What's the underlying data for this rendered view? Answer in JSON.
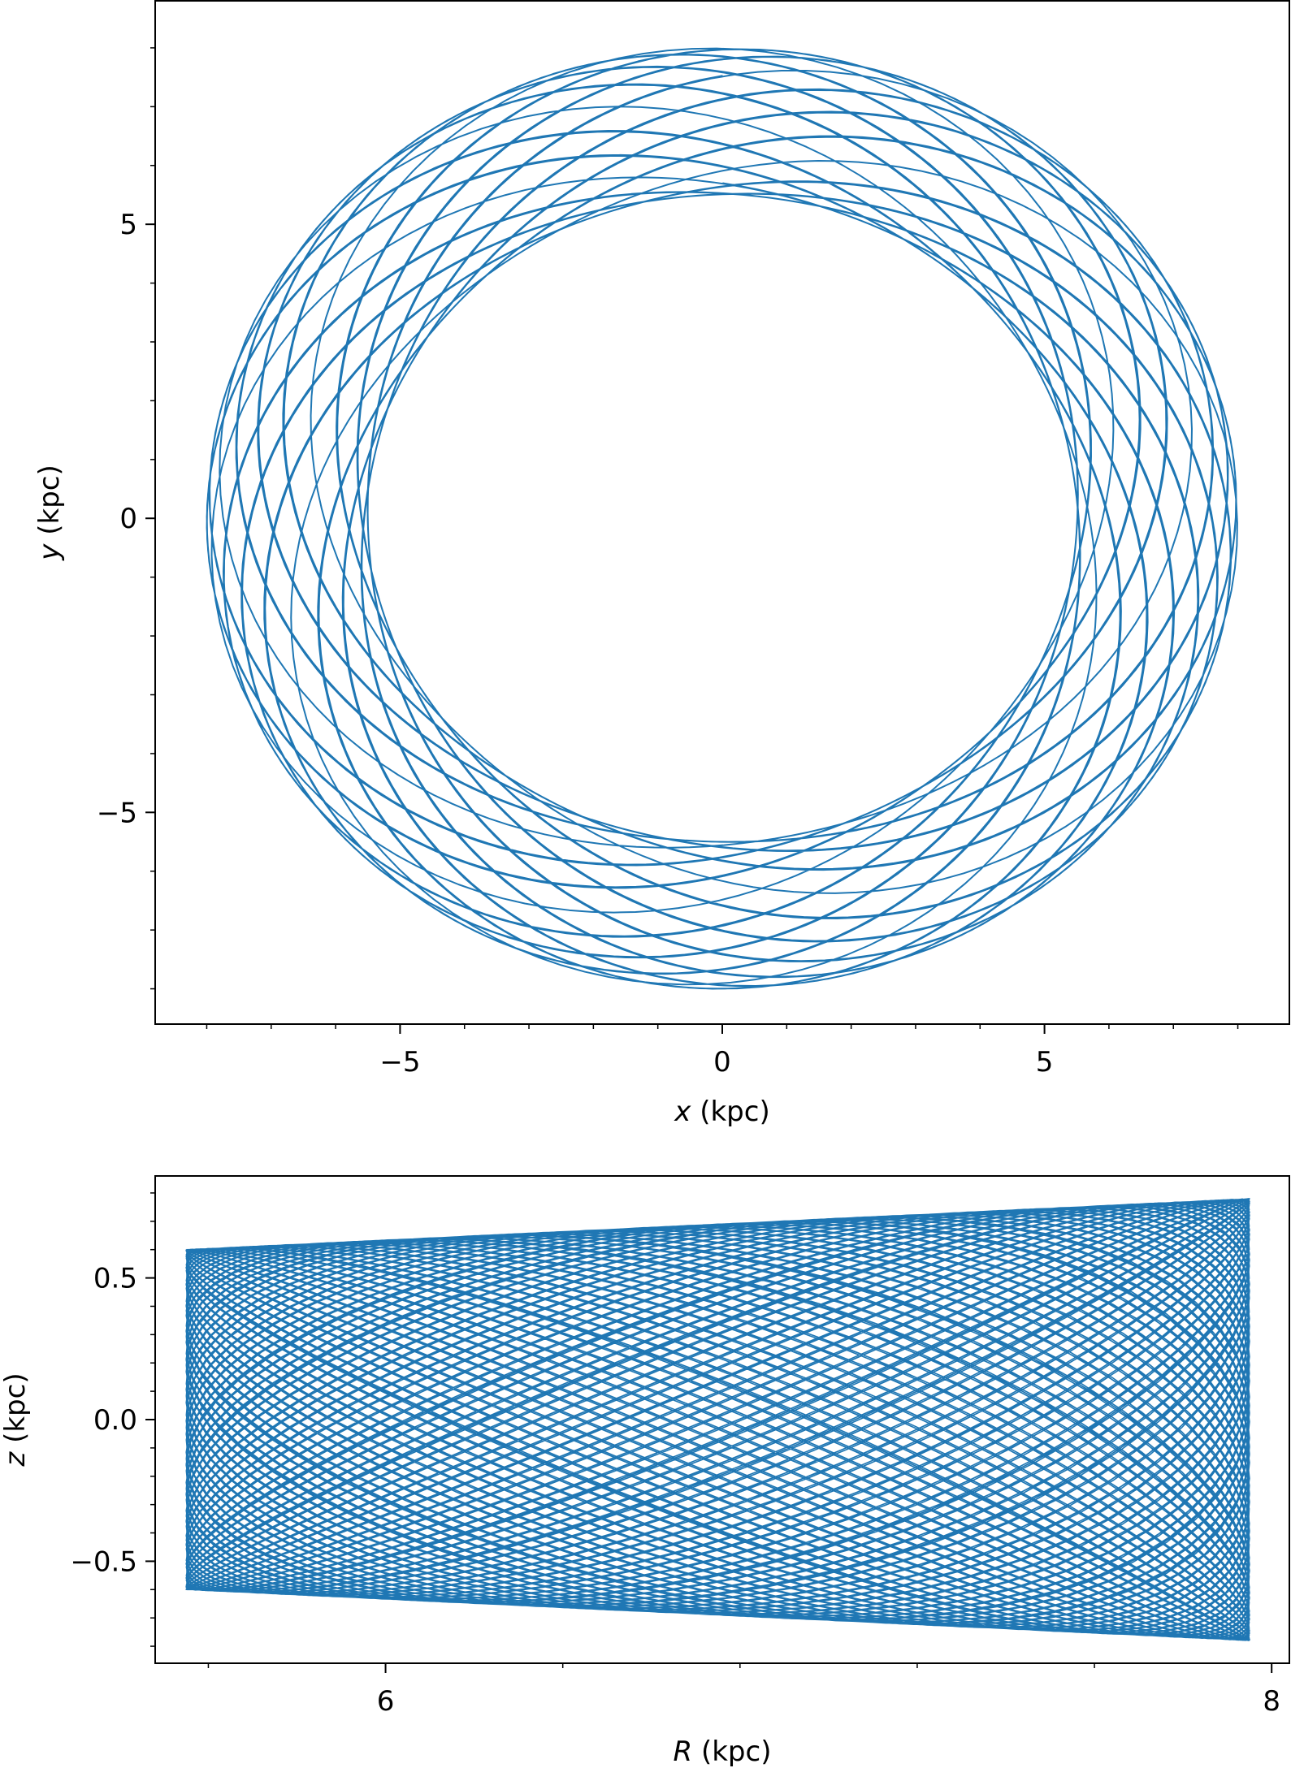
{
  "chart_data": [
    {
      "type": "line",
      "xlabel_var": "x",
      "xlabel_unit": " (kpc)",
      "ylabel_var": "y",
      "ylabel_unit": " (kpc)",
      "xlim": [
        -8.8,
        8.8
      ],
      "ylim": [
        -8.6,
        8.8
      ],
      "xticks": [
        -5,
        0,
        5
      ],
      "xtick_labels": [
        "−5",
        "0",
        "5"
      ],
      "yticks": [
        -5,
        0,
        5
      ],
      "ytick_labels": [
        "−5",
        "0",
        "5"
      ],
      "grid": false,
      "legend": "none",
      "series": [
        {
          "color": "#1f77b4",
          "curve": "rosette orbit",
          "r_min": 5.5,
          "r_max": 8.0,
          "radial_per_azimuthal_ratio": 1.389,
          "azimuthal_turns": 32
        }
      ]
    },
    {
      "type": "line",
      "xlabel_var": "R",
      "xlabel_unit": " (kpc)",
      "ylabel_var": "z",
      "ylabel_unit": " (kpc)",
      "xlim": [
        5.48,
        8.04
      ],
      "ylim": [
        -0.86,
        0.86
      ],
      "xticks": [
        6,
        8
      ],
      "xtick_labels": [
        "6",
        "8"
      ],
      "yticks": [
        -0.5,
        0.0,
        0.5
      ],
      "ytick_labels": [
        "−0.5",
        "0.0",
        "0.5"
      ],
      "grid": false,
      "legend": "none",
      "series": [
        {
          "color": "#1f77b4",
          "curve": "box orbit in meridional plane",
          "R_min": 5.55,
          "R_max": 7.95,
          "z_max_at_R_min": 0.6,
          "z_max_at_R_max": 0.78
        }
      ]
    }
  ]
}
